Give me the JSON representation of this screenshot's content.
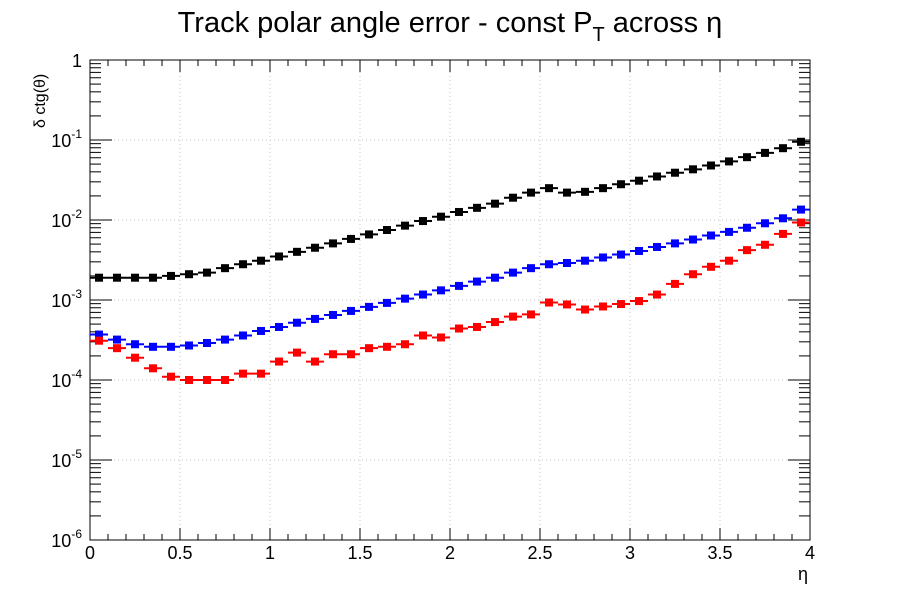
{
  "chart_data": {
    "type": "scatter",
    "title": "Track polar angle error - const P",
    "title_sub": "T",
    "title_suffix": " across η",
    "xlabel": "η",
    "ylabel": "δ ctg(θ)",
    "xlim": [
      0,
      4
    ],
    "ylim": [
      1e-06,
      1
    ],
    "yscale": "log",
    "grid": true,
    "x_ticks": [
      "0",
      "0.5",
      "1",
      "1.5",
      "2",
      "2.5",
      "3",
      "3.5",
      "4"
    ],
    "y_ticks": [
      {
        "base": "1",
        "exp": ""
      },
      {
        "base": "10",
        "exp": "-1"
      },
      {
        "base": "10",
        "exp": "-2"
      },
      {
        "base": "10",
        "exp": "-3"
      },
      {
        "base": "10",
        "exp": "-4"
      },
      {
        "base": "10",
        "exp": "-5"
      },
      {
        "base": "10",
        "exp": "-6"
      }
    ],
    "x": [
      0.05,
      0.15,
      0.25,
      0.35,
      0.45,
      0.55,
      0.65,
      0.75,
      0.85,
      0.95,
      1.05,
      1.15,
      1.25,
      1.35,
      1.45,
      1.55,
      1.65,
      1.75,
      1.85,
      1.95,
      2.05,
      2.15,
      2.25,
      2.35,
      2.45,
      2.55,
      2.65,
      2.75,
      2.85,
      2.95,
      3.05,
      3.15,
      3.25,
      3.35,
      3.45,
      3.55,
      3.65,
      3.75,
      3.85,
      3.95
    ],
    "x_half_width": 0.05,
    "series": [
      {
        "color": "#000000",
        "values": [
          0.0019,
          0.0019,
          0.0019,
          0.0019,
          0.002,
          0.0021,
          0.0022,
          0.0025,
          0.0028,
          0.0031,
          0.0035,
          0.004,
          0.0045,
          0.0051,
          0.0058,
          0.0066,
          0.0075,
          0.0085,
          0.0097,
          0.011,
          0.0126,
          0.0142,
          0.016,
          0.019,
          0.022,
          0.025,
          0.022,
          0.0225,
          0.025,
          0.028,
          0.031,
          0.035,
          0.039,
          0.043,
          0.048,
          0.054,
          0.061,
          0.069,
          0.079,
          0.095
        ]
      },
      {
        "color": "#0000ff",
        "values": [
          0.00037,
          0.00032,
          0.00028,
          0.00026,
          0.00026,
          0.00027,
          0.00029,
          0.00032,
          0.00036,
          0.00041,
          0.00046,
          0.00052,
          0.00058,
          0.00065,
          0.00073,
          0.00082,
          0.00092,
          0.00104,
          0.00117,
          0.00132,
          0.0015,
          0.0017,
          0.0019,
          0.0022,
          0.0025,
          0.0028,
          0.0029,
          0.0031,
          0.0034,
          0.0037,
          0.0041,
          0.0046,
          0.0051,
          0.0057,
          0.0064,
          0.0071,
          0.008,
          0.0091,
          0.0105,
          0.0135
        ]
      },
      {
        "color": "#ff0000",
        "values": [
          0.00031,
          0.00025,
          0.00019,
          0.00014,
          0.00011,
          0.0001,
          0.0001,
          0.0001,
          0.00012,
          0.00012,
          0.00017,
          0.00022,
          0.00017,
          0.00021,
          0.00021,
          0.00025,
          0.00026,
          0.00028,
          0.00036,
          0.00034,
          0.00044,
          0.00046,
          0.00053,
          0.00062,
          0.00066,
          0.00093,
          0.00088,
          0.00076,
          0.00083,
          0.00089,
          0.00097,
          0.00117,
          0.00159,
          0.0021,
          0.0026,
          0.0031,
          0.0042,
          0.0049,
          0.0067,
          0.0093
        ]
      }
    ]
  }
}
